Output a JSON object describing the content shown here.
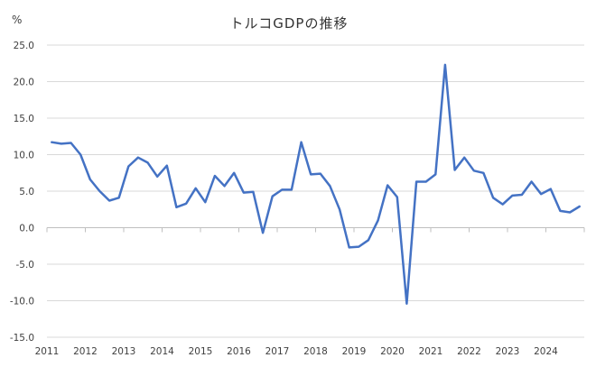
{
  "chart_data": {
    "type": "line",
    "title": "トルコGDPの推移",
    "ylabel": "%",
    "xlabel": "",
    "ylim": [
      -15,
      25
    ],
    "yticks": [
      25,
      20,
      15,
      10,
      5,
      0,
      -5,
      -10,
      -15
    ],
    "ytick_labels": [
      "25.0",
      "20.0",
      "15.0",
      "10.0",
      "5.0",
      "0.0",
      "-5.0",
      "-10.0",
      "-15.0"
    ],
    "year_labels": [
      "2011",
      "2012",
      "2013",
      "2014",
      "2015",
      "2016",
      "2017",
      "2018",
      "2019",
      "2020",
      "2021",
      "2022",
      "2023",
      "2024"
    ],
    "grid": true,
    "legend": "none",
    "color": "#4472c4",
    "series": [
      {
        "values": [
          11.7,
          11.5,
          11.6,
          10.0,
          6.6,
          5.0,
          3.7,
          4.1,
          8.4,
          9.6,
          8.9,
          7.0,
          8.5,
          2.8,
          3.3,
          5.4,
          3.5,
          7.1,
          5.7,
          7.5,
          4.8,
          4.9,
          -0.7,
          4.3,
          5.2,
          5.2,
          11.7,
          7.3,
          7.4,
          5.7,
          2.5,
          -2.7,
          -2.6,
          -1.7,
          1.0,
          5.8,
          4.2,
          -10.4,
          6.3,
          6.3,
          7.3,
          22.3,
          7.9,
          9.6,
          7.8,
          7.5,
          4.1,
          3.2,
          4.4,
          4.5,
          6.3,
          4.6,
          5.3,
          2.3,
          2.1,
          2.9
        ]
      }
    ]
  }
}
